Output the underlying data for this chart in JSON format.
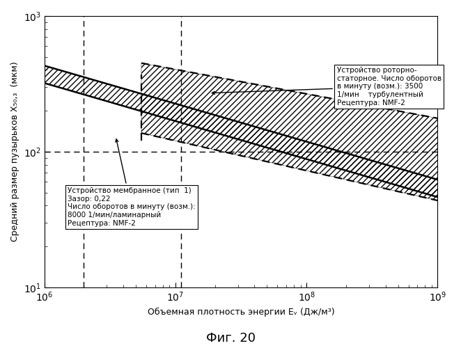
{
  "title": "",
  "xlabel": "Объемная плотность энергии Eᵥ (Дж/м³)",
  "ylabel": "Средний размер пузырьков X₅₀,₃  (мкм)",
  "fig_caption": "Фиг. 20",
  "xlim": [
    1000000.0,
    1000000000.0
  ],
  "ylim": [
    10,
    1000
  ],
  "hline_y": 100,
  "vline_x1": 2000000.0,
  "vline_x2": 11000000.0,
  "annotation_rotor": "Устройство роторно-\nстаторное. Число оборотов\nв минуту (возм.): 3500\n1/мин    турбулентный\nРецептура: NMF-2",
  "annotation_membrane": "Устройство мембранное (тип  1)\nЗазор: 0,22\nЧисло оборотов в минуту (возм.):\n8000 1/мин/ламинарный\nРецептура: NMF-2",
  "background_color": "#ffffff",
  "line_color": "#000000"
}
